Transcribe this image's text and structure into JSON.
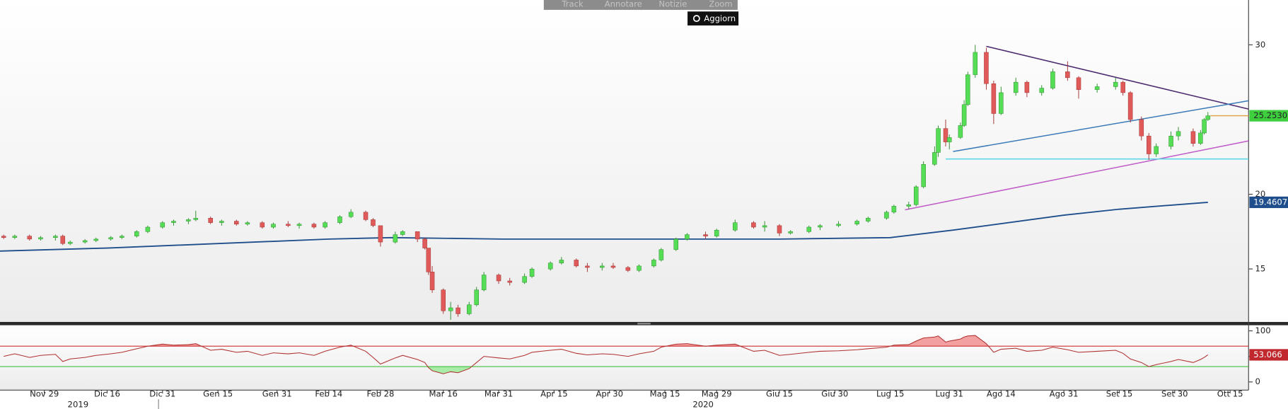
{
  "toolbar": {
    "buttons": [
      "Track",
      "Annotare",
      "Notizie",
      "Zoom"
    ],
    "refresh": "Aggiorn"
  },
  "chart_data": [
    {
      "type": "candlestick",
      "xlim": [
        "2019-11-17",
        "2020-10-20"
      ],
      "ylim": [
        11.4,
        33
      ],
      "yticks": [
        15,
        20,
        30
      ],
      "up_color": "#55dd55",
      "down_color": "#e05a5a",
      "x": [
        "2019-11-18",
        "2019-11-21",
        "2019-11-25",
        "2019-11-28",
        "2019-12-02",
        "2019-12-04",
        "2019-12-06",
        "2019-12-10",
        "2019-12-13",
        "2019-12-17",
        "2019-12-20",
        "2019-12-24",
        "2019-12-27",
        "2019-12-31",
        "2020-01-03",
        "2020-01-07",
        "2020-01-09",
        "2020-01-13",
        "2020-01-16",
        "2020-01-20",
        "2020-01-23",
        "2020-01-27",
        "2020-01-30",
        "2020-02-03",
        "2020-02-06",
        "2020-02-10",
        "2020-02-13",
        "2020-02-17",
        "2020-02-20",
        "2020-02-24",
        "2020-02-26",
        "2020-02-28",
        "2020-03-03",
        "2020-03-05",
        "2020-03-09",
        "2020-03-11",
        "2020-03-12",
        "2020-03-13",
        "2020-03-16",
        "2020-03-18",
        "2020-03-20",
        "2020-03-23",
        "2020-03-25",
        "2020-03-27",
        "2020-03-31",
        "2020-04-03",
        "2020-04-07",
        "2020-04-09",
        "2020-04-14",
        "2020-04-17",
        "2020-04-21",
        "2020-04-24",
        "2020-04-28",
        "2020-05-01",
        "2020-05-05",
        "2020-05-08",
        "2020-05-12",
        "2020-05-14",
        "2020-05-18",
        "2020-05-21",
        "2020-05-26",
        "2020-05-29",
        "2020-06-03",
        "2020-06-08",
        "2020-06-11",
        "2020-06-15",
        "2020-06-18",
        "2020-06-23",
        "2020-06-26",
        "2020-07-01",
        "2020-07-06",
        "2020-07-09",
        "2020-07-14",
        "2020-07-16",
        "2020-07-20",
        "2020-07-22",
        "2020-07-24",
        "2020-07-27",
        "2020-07-28",
        "2020-07-30",
        "2020-07-31",
        "2020-08-03",
        "2020-08-04",
        "2020-08-05",
        "2020-08-07",
        "2020-08-10",
        "2020-08-12",
        "2020-08-14",
        "2020-08-18",
        "2020-08-21",
        "2020-08-25",
        "2020-08-28",
        "2020-09-01",
        "2020-09-04",
        "2020-09-09",
        "2020-09-14",
        "2020-09-16",
        "2020-09-18",
        "2020-09-21",
        "2020-09-23",
        "2020-09-25",
        "2020-09-29",
        "2020-10-01",
        "2020-10-05",
        "2020-10-07",
        "2020-10-08",
        "2020-10-09"
      ],
      "open": [
        17.2,
        17.1,
        17.2,
        17.0,
        17.1,
        17.2,
        16.7,
        16.8,
        16.9,
        17.0,
        17.1,
        17.2,
        17.5,
        17.8,
        18.1,
        18.2,
        18.3,
        18.4,
        18.1,
        18.2,
        18.0,
        18.1,
        17.8,
        18.0,
        17.9,
        18.0,
        17.8,
        18.1,
        18.5,
        18.8,
        18.3,
        17.9,
        16.8,
        17.3,
        17.5,
        17.0,
        16.4,
        14.8,
        13.6,
        12.2,
        12.4,
        12.0,
        12.6,
        13.6,
        14.6,
        14.2,
        14.1,
        14.5,
        15.0,
        15.4,
        15.6,
        15.2,
        15.1,
        15.2,
        15.1,
        14.9,
        15.2,
        15.6,
        16.3,
        17.0,
        17.3,
        17.2,
        17.6,
        18.1,
        17.8,
        17.9,
        17.4,
        17.5,
        17.8,
        17.9,
        18.0,
        18.2,
        18.4,
        18.8,
        19.2,
        19.3,
        20.5,
        22.0,
        22.8,
        24.4,
        23.5,
        23.8,
        24.6,
        26.0,
        28.0,
        29.5,
        27.4,
        25.4,
        26.8,
        27.5,
        26.8,
        27.1,
        28.2,
        27.8,
        27.0,
        27.2,
        27.5,
        26.8,
        25.0,
        23.9,
        22.7,
        23.2,
        23.9,
        24.2,
        23.4,
        24.1,
        25.0
      ],
      "high": [
        17.3,
        17.3,
        17.3,
        17.2,
        17.3,
        17.3,
        16.9,
        17.0,
        17.1,
        17.2,
        17.3,
        17.6,
        17.9,
        18.2,
        18.3,
        18.4,
        18.9,
        18.5,
        18.3,
        18.3,
        18.2,
        18.2,
        18.1,
        18.2,
        18.1,
        18.1,
        18.2,
        18.6,
        19.0,
        18.9,
        18.4,
        17.9,
        17.5,
        17.6,
        17.5,
        17.1,
        16.4,
        15.2,
        13.7,
        12.8,
        12.6,
        12.8,
        13.8,
        14.8,
        14.7,
        14.4,
        14.7,
        15.1,
        15.5,
        15.8,
        15.7,
        15.4,
        15.4,
        15.4,
        15.2,
        15.3,
        15.7,
        16.4,
        17.1,
        17.4,
        17.5,
        17.7,
        18.3,
        18.2,
        18.2,
        18.0,
        17.6,
        17.9,
        18.0,
        18.2,
        18.3,
        18.5,
        18.9,
        19.3,
        19.5,
        20.6,
        22.2,
        23.2,
        24.6,
        25.0,
        24.0,
        24.8,
        26.3,
        28.2,
        30.0,
        29.8,
        27.6,
        27.2,
        27.8,
        27.6,
        27.3,
        28.4,
        28.9,
        27.9,
        27.4,
        27.8,
        27.6,
        26.9,
        25.2,
        24.1,
        23.4,
        24.2,
        24.5,
        24.4,
        24.3,
        25.1,
        25.5
      ],
      "low": [
        17.0,
        17.0,
        16.9,
        16.9,
        16.9,
        16.6,
        16.6,
        16.7,
        16.8,
        16.9,
        17.0,
        17.1,
        17.4,
        17.7,
        17.9,
        18.0,
        18.2,
        18.0,
        17.9,
        17.9,
        17.9,
        17.7,
        17.7,
        17.8,
        17.7,
        17.7,
        17.7,
        18.0,
        18.4,
        18.2,
        17.8,
        16.5,
        16.7,
        17.2,
        16.8,
        16.3,
        14.6,
        13.4,
        12.0,
        11.6,
        11.8,
        11.9,
        12.5,
        13.5,
        14.0,
        13.9,
        14.0,
        14.4,
        14.9,
        15.3,
        15.1,
        14.8,
        14.9,
        15.0,
        14.8,
        14.8,
        15.1,
        15.5,
        16.2,
        16.9,
        17.0,
        17.1,
        17.5,
        17.7,
        17.5,
        17.2,
        17.3,
        17.4,
        17.6,
        17.8,
        17.9,
        18.1,
        18.3,
        18.7,
        19.0,
        19.2,
        20.4,
        21.9,
        22.5,
        23.2,
        23.0,
        23.7,
        24.5,
        25.9,
        27.8,
        27.0,
        24.7,
        25.3,
        26.6,
        26.5,
        26.6,
        27.0,
        27.6,
        26.4,
        26.8,
        27.0,
        26.6,
        24.8,
        23.6,
        22.3,
        22.5,
        23.0,
        23.6,
        23.2,
        23.3,
        24.0,
        24.9
      ],
      "close": [
        17.1,
        17.2,
        17.0,
        17.1,
        17.2,
        16.7,
        16.8,
        16.9,
        17.0,
        17.1,
        17.2,
        17.5,
        17.8,
        18.1,
        18.2,
        18.3,
        18.4,
        18.1,
        18.2,
        18.0,
        18.1,
        17.8,
        18.0,
        17.9,
        18.0,
        17.8,
        18.1,
        18.5,
        18.8,
        18.3,
        17.9,
        16.8,
        17.3,
        17.5,
        17.0,
        16.4,
        14.8,
        13.6,
        12.2,
        12.4,
        12.0,
        12.6,
        13.6,
        14.6,
        14.2,
        14.1,
        14.5,
        15.0,
        15.4,
        15.6,
        15.2,
        15.1,
        15.2,
        15.1,
        14.9,
        15.2,
        15.6,
        16.3,
        17.0,
        17.3,
        17.2,
        17.6,
        18.1,
        17.8,
        17.9,
        17.4,
        17.5,
        17.8,
        17.9,
        18.0,
        18.2,
        18.4,
        18.8,
        19.2,
        19.3,
        20.5,
        22.0,
        22.8,
        24.4,
        23.5,
        23.8,
        24.6,
        26.0,
        28.0,
        29.5,
        27.4,
        25.4,
        26.8,
        27.5,
        26.8,
        27.1,
        28.2,
        27.8,
        27.0,
        27.2,
        27.5,
        26.8,
        25.0,
        23.9,
        22.7,
        23.2,
        23.9,
        24.2,
        23.4,
        24.1,
        25.0,
        25.253
      ],
      "last_value_label": "25.2530",
      "last_value_color": "#3ecf3e",
      "overlays": [
        {
          "color": "#1f4e8c",
          "x": [
            "2019-11-17",
            "2019-12-16",
            "2020-01-15",
            "2020-02-14",
            "2020-03-02",
            "2020-04-01",
            "2020-05-15",
            "2020-06-15",
            "2020-07-15",
            "2020-08-01",
            "2020-08-31",
            "2020-09-15",
            "2020-10-09"
          ],
          "values": [
            16.2,
            16.4,
            16.7,
            17.0,
            17.1,
            17.0,
            17.0,
            17.0,
            17.1,
            17.6,
            18.6,
            19.0,
            19.4607
          ]
        }
      ],
      "trendlines": [
        {
          "color": "#4b2a6e",
          "x": [
            "2020-08-10",
            "2020-10-20"
          ],
          "values": [
            29.9,
            25.7
          ]
        },
        {
          "color": "#3a7ab8",
          "x": [
            "2020-08-01",
            "2020-10-20"
          ],
          "values": [
            22.86,
            26.26
          ]
        },
        {
          "color": "#c05ac8",
          "x": [
            "2020-07-19",
            "2020-10-20"
          ],
          "values": [
            18.96,
            23.57
          ]
        },
        {
          "color": "#5fd8e8",
          "x": [
            "2020-07-30",
            "2020-10-20"
          ],
          "values": [
            22.36,
            22.36
          ]
        }
      ]
    },
    {
      "type": "line",
      "ylim": [
        -16,
        111
      ],
      "yticks": [
        0,
        50,
        100
      ],
      "color": "#b03030",
      "upper_band": 70,
      "upper_color": "#d03030",
      "lower_band": 30,
      "lower_color": "#40c040",
      "values": [
        50,
        55,
        48,
        52,
        54,
        40,
        45,
        48,
        52,
        55,
        58,
        65,
        70,
        74,
        72,
        73,
        75,
        62,
        64,
        58,
        60,
        52,
        57,
        55,
        57,
        52,
        60,
        68,
        72,
        60,
        48,
        35,
        47,
        52,
        44,
        38,
        28,
        22,
        16,
        20,
        18,
        26,
        38,
        50,
        47,
        45,
        52,
        58,
        62,
        64,
        56,
        53,
        55,
        54,
        50,
        55,
        60,
        68,
        74,
        75,
        70,
        72,
        74,
        60,
        62,
        52,
        54,
        58,
        60,
        61,
        63,
        65,
        68,
        72,
        73,
        80,
        86,
        88,
        90,
        78,
        80,
        84,
        88,
        90,
        91,
        75,
        58,
        64,
        66,
        60,
        62,
        68,
        63,
        58,
        60,
        62,
        56,
        45,
        38,
        30,
        34,
        40,
        44,
        38,
        44,
        48,
        53.066
      ],
      "xticks": [
        {
          "value": "2019-11-29",
          "label": "Nov 29"
        },
        {
          "value": "2019-12-16",
          "label": "Dic 16"
        },
        {
          "value": "2019-12-31",
          "label": "Dic 31"
        },
        {
          "value": "2020-01-15",
          "label": "Gen 15"
        },
        {
          "value": "2020-01-31",
          "label": "Gen 31"
        },
        {
          "value": "2020-02-14",
          "label": "Feb 14"
        },
        {
          "value": "2020-02-28",
          "label": "Feb 28"
        },
        {
          "value": "2020-03-16",
          "label": "Mar 16"
        },
        {
          "value": "2020-03-31",
          "label": "Mar 31"
        },
        {
          "value": "2020-04-15",
          "label": "Apr 15"
        },
        {
          "value": "2020-04-30",
          "label": "Apr 30"
        },
        {
          "value": "2020-05-15",
          "label": "Mag 15"
        },
        {
          "value": "2020-05-29",
          "label": "Mag 29"
        },
        {
          "value": "2020-06-15",
          "label": "Giu 15"
        },
        {
          "value": "2020-06-30",
          "label": "Giu 30"
        },
        {
          "value": "2020-07-15",
          "label": "Lug 15"
        },
        {
          "value": "2020-07-31",
          "label": "Lug 31"
        },
        {
          "value": "2020-08-14",
          "label": "Ago 14"
        },
        {
          "value": "2020-08-31",
          "label": "Ago 31"
        },
        {
          "value": "2020-09-15",
          "label": "Set 15"
        },
        {
          "value": "2020-09-30",
          "label": "Set 30"
        },
        {
          "value": "2020-10-15",
          "label": "Ott 15"
        }
      ],
      "year_labels": [
        "2019",
        "2020"
      ]
    }
  ]
}
